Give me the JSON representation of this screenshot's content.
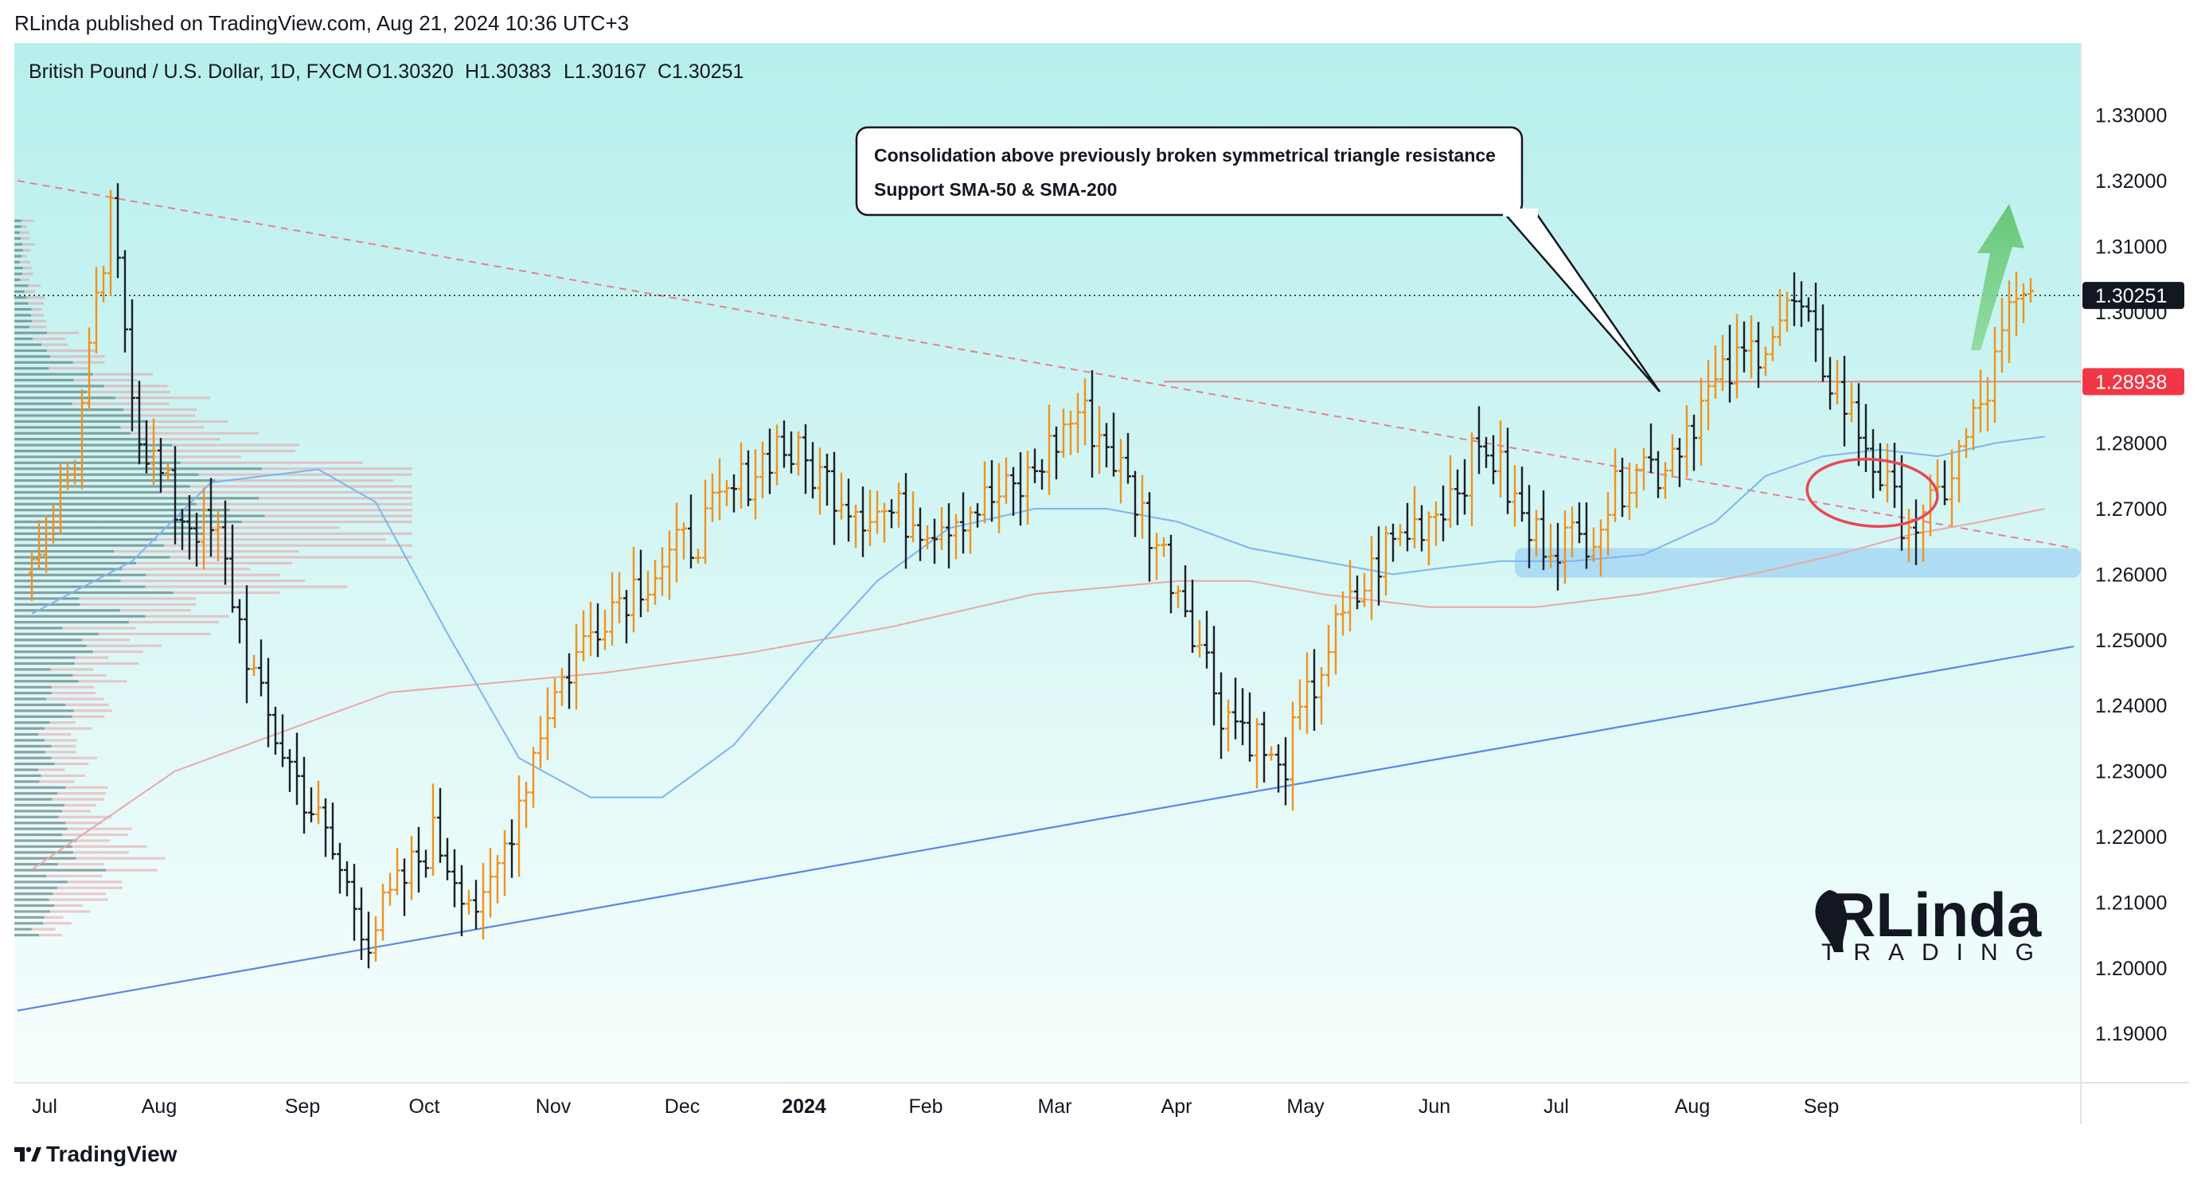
{
  "header": {
    "published_line": "RLinda published on TradingView.com, Aug 21, 2024 10:36 UTC+3"
  },
  "footer": {
    "brand": "TradingView"
  },
  "chart_data": {
    "type": "ohlc",
    "title": "British Pound / U.S. Dollar, 1D, FXCM",
    "ohlc_legend": {
      "o": "O1.30320",
      "h": "H1.30383",
      "l": "L1.30167",
      "c": "C1.30251"
    },
    "ylim": [
      1.1825,
      1.341
    ],
    "y_ticks": [
      "1.33000",
      "1.32000",
      "1.31000",
      "1.30000",
      "1.29000",
      "1.28000",
      "1.27000",
      "1.26000",
      "1.25000",
      "1.24000",
      "1.23000",
      "1.22000",
      "1.21000",
      "1.20000",
      "1.19000"
    ],
    "x_labels": [
      "Jul",
      "Aug",
      "Sep",
      "Oct",
      "Nov",
      "Dec",
      "2024",
      "Feb",
      "Mar",
      "Apr",
      "May",
      "Jun",
      "Jul",
      "Aug",
      "Sep"
    ],
    "price_badges": [
      {
        "label": "1.30251",
        "value": 1.30251,
        "color": "#131722"
      },
      {
        "label": "1.28938",
        "value": 1.28938,
        "color": "#f23645"
      }
    ],
    "annotation": {
      "line1": "Consolidation above previously broken symmetrical triangle resistance",
      "line2": "Support SMA-50 & SMA-200"
    },
    "watermark": {
      "big": "RLinda",
      "small": "TRADING"
    },
    "path_points": [
      [
        0,
        1.262
      ],
      [
        6,
        1.278
      ],
      [
        11,
        1.314
      ],
      [
        15,
        1.282
      ],
      [
        20,
        1.27
      ],
      [
        26,
        1.265
      ],
      [
        32,
        1.24
      ],
      [
        40,
        1.222
      ],
      [
        47,
        1.205
      ],
      [
        56,
        1.22
      ],
      [
        63,
        1.208
      ],
      [
        72,
        1.24
      ],
      [
        80,
        1.255
      ],
      [
        92,
        1.265
      ],
      [
        104,
        1.28
      ],
      [
        116,
        1.27
      ],
      [
        126,
        1.268
      ],
      [
        138,
        1.273
      ],
      [
        146,
        1.285
      ],
      [
        150,
        1.28
      ],
      [
        156,
        1.267
      ],
      [
        161,
        1.256
      ],
      [
        166,
        1.24
      ],
      [
        171,
        1.235
      ],
      [
        174,
        1.229
      ],
      [
        181,
        1.249
      ],
      [
        189,
        1.264
      ],
      [
        196,
        1.27
      ],
      [
        203,
        1.28
      ],
      [
        209,
        1.266
      ],
      [
        216,
        1.265
      ],
      [
        221,
        1.272
      ],
      [
        224,
        1.278
      ],
      [
        227,
        1.276
      ],
      [
        233,
        1.286
      ],
      [
        240,
        1.294
      ],
      [
        246,
        1.301
      ],
      [
        251,
        1.29
      ],
      [
        256,
        1.28
      ],
      [
        260,
        1.27
      ],
      [
        264,
        1.267
      ],
      [
        269,
        1.278
      ],
      [
        273,
        1.288
      ],
      [
        276,
        1.299
      ],
      [
        279,
        1.3025
      ]
    ],
    "sma50": [
      [
        0,
        1.254
      ],
      [
        14,
        1.262
      ],
      [
        25,
        1.274
      ],
      [
        40,
        1.276
      ],
      [
        48,
        1.271
      ],
      [
        58,
        1.251
      ],
      [
        68,
        1.232
      ],
      [
        78,
        1.226
      ],
      [
        88,
        1.226
      ],
      [
        98,
        1.234
      ],
      [
        108,
        1.247
      ],
      [
        118,
        1.259
      ],
      [
        128,
        1.267
      ],
      [
        140,
        1.27
      ],
      [
        150,
        1.27
      ],
      [
        160,
        1.268
      ],
      [
        170,
        1.264
      ],
      [
        180,
        1.262
      ],
      [
        190,
        1.26
      ],
      [
        197,
        1.261
      ],
      [
        205,
        1.262
      ],
      [
        215,
        1.262
      ],
      [
        225,
        1.263
      ],
      [
        235,
        1.268
      ],
      [
        242,
        1.275
      ],
      [
        250,
        1.278
      ],
      [
        258,
        1.279
      ],
      [
        266,
        1.278
      ],
      [
        274,
        1.28
      ],
      [
        281,
        1.281
      ]
    ],
    "sma200": [
      [
        0,
        1.215
      ],
      [
        20,
        1.23
      ],
      [
        40,
        1.238
      ],
      [
        50,
        1.242
      ],
      [
        60,
        1.243
      ],
      [
        80,
        1.245
      ],
      [
        100,
        1.248
      ],
      [
        120,
        1.252
      ],
      [
        140,
        1.257
      ],
      [
        160,
        1.259
      ],
      [
        170,
        1.259
      ],
      [
        180,
        1.257
      ],
      [
        195,
        1.255
      ],
      [
        210,
        1.255
      ],
      [
        225,
        1.257
      ],
      [
        240,
        1.26
      ],
      [
        252,
        1.263
      ],
      [
        262,
        1.266
      ],
      [
        272,
        1.268
      ],
      [
        281,
        1.27
      ]
    ],
    "triangle_resistance": [
      [
        -2,
        1.32
      ],
      [
        285,
        1.264
      ]
    ],
    "triangle_support": [
      [
        -2,
        1.1935
      ],
      [
        285,
        1.249
      ]
    ],
    "resistance_level": {
      "x_start": 158,
      "value": 1.28938
    },
    "support_zone": [
      1.2595,
      1.264
    ],
    "last_price_value": 1.30251
  }
}
